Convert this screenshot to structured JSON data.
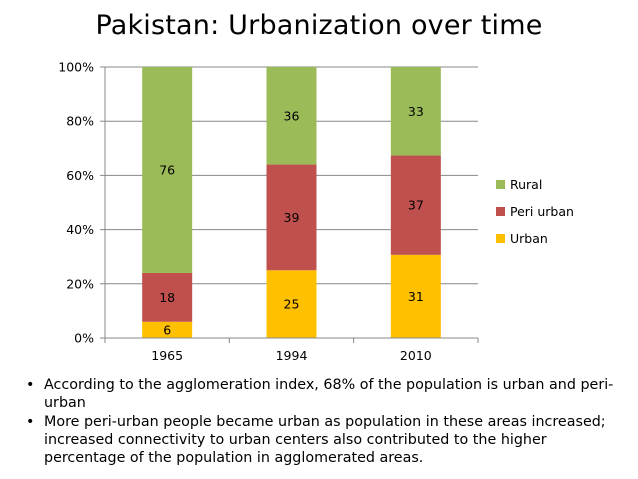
{
  "title": "Pakistan: Urbanization over time",
  "chart_data": {
    "type": "bar",
    "stacked": true,
    "normalized": true,
    "title": "Pakistan: Urbanization over time",
    "categories": [
      "1965",
      "1994",
      "2010"
    ],
    "series": [
      {
        "name": "Urban",
        "values": [
          6,
          25,
          31
        ],
        "color": "#ffc000"
      },
      {
        "name": "Peri urban",
        "values": [
          18,
          39,
          37
        ],
        "color": "#c0504d"
      },
      {
        "name": "Rural",
        "values": [
          76,
          36,
          33
        ],
        "color": "#9bbb59"
      }
    ],
    "yticks": [
      "0%",
      "20%",
      "40%",
      "60%",
      "80%",
      "100%"
    ],
    "ylim": [
      0,
      100
    ],
    "grid": true,
    "legend_position": "right"
  },
  "bullets": [
    "According to the agglomeration index, 68% of the population is urban and peri-urban",
    "More peri-urban people became urban as population in these areas increased; increased connectivity to urban centers also contributed to the higher percentage of the population in agglomerated areas."
  ],
  "bullet_symbol": "•"
}
